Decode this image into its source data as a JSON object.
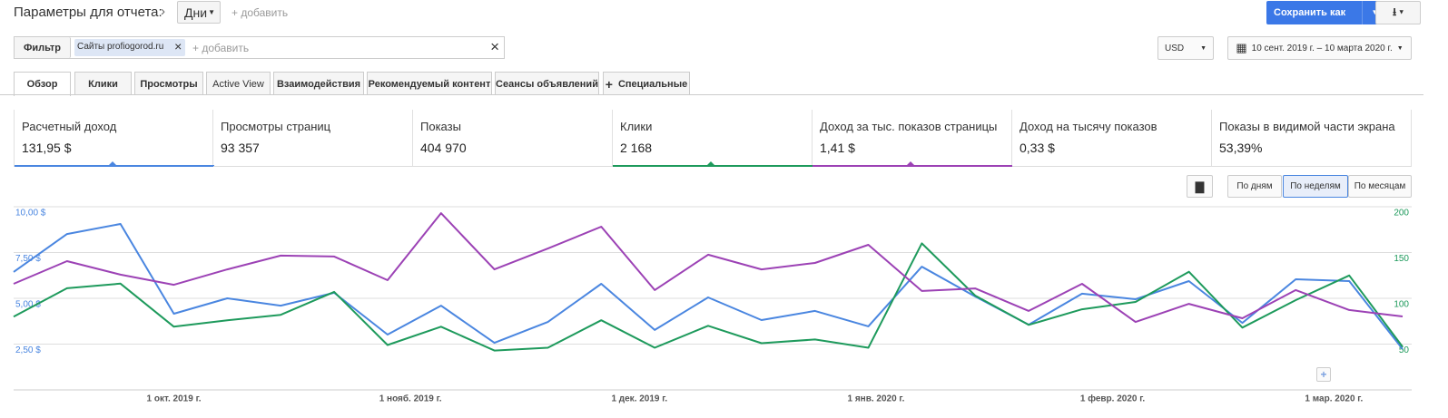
{
  "header": {
    "title": "Параметры для отчета:",
    "period": "Дни",
    "add": "+ добавить",
    "save": "Сохранить как"
  },
  "filter": {
    "label": "Фильтр",
    "chip": "Сайты profiogorod.ru",
    "add": "+ добавить",
    "currency": "USD",
    "date_range": "10 сент. 2019 г. – 10 марта 2020 г."
  },
  "tabs": [
    "Обзор",
    "Клики",
    "Просмотры",
    "Active View",
    "Взаимодействия",
    "Рекомендуемый контент",
    "Сеансы объявлений",
    "Специальные"
  ],
  "metrics": [
    {
      "label": "Расчетный доход",
      "value": "131,95 $"
    },
    {
      "label": "Просмотры страниц",
      "value": "93 357"
    },
    {
      "label": "Показы",
      "value": "404 970"
    },
    {
      "label": "Клики",
      "value": "2 168"
    },
    {
      "label": "Доход за тыс. показов страницы",
      "value": "1,41 $"
    },
    {
      "label": "Доход на тысячу показов",
      "value": "0,33 $"
    },
    {
      "label": "Показы в видимой части экрана",
      "value": "53,39%"
    }
  ],
  "granularity": [
    "По дням",
    "По неделям",
    "По месяцам"
  ],
  "chart_data": {
    "type": "line",
    "x": [
      "2019-09-10",
      "2019-09-17",
      "2019-09-24",
      "2019-10-01",
      "2019-10-08",
      "2019-10-15",
      "2019-10-22",
      "2019-10-29",
      "2019-11-05",
      "2019-11-12",
      "2019-11-19",
      "2019-11-26",
      "2019-12-03",
      "2019-12-10",
      "2019-12-17",
      "2019-12-24",
      "2019-12-31",
      "2020-01-07",
      "2020-01-14",
      "2020-01-21",
      "2020-01-28",
      "2020-02-04",
      "2020-02-11",
      "2020-02-18",
      "2020-02-25",
      "2020-03-03",
      "2020-03-10"
    ],
    "xlim": [
      "2019-09-10",
      "2020-03-10"
    ],
    "xticks": [
      {
        "value": "2019-10-01",
        "label": "1 окт. 2019 г."
      },
      {
        "value": "2019-11-01",
        "label": "1 нояб. 2019 г."
      },
      {
        "value": "2019-12-01",
        "label": "1 дек. 2019 г."
      },
      {
        "value": "2020-01-01",
        "label": "1 янв. 2020 г."
      },
      {
        "value": "2020-02-01",
        "label": "1 февр. 2020 г."
      },
      {
        "value": "2020-03-01",
        "label": "1 мар. 2020 г."
      }
    ],
    "ylim": [
      0,
      10
    ],
    "yticks": [
      {
        "value": 2.5,
        "label": "2,50 $"
      },
      {
        "value": 5,
        "label": "5,00 $"
      },
      {
        "value": 7.5,
        "label": "7,50 $"
      },
      {
        "value": 10,
        "label": "10,00 $"
      }
    ],
    "y2lim": [
      0,
      200
    ],
    "y2ticks": [
      50,
      100,
      150,
      200
    ],
    "grid": true,
    "series": [
      {
        "color": "#4a86e0",
        "values": [
          6.44,
          8.51,
          9.06,
          4.16,
          5.0,
          4.6,
          5.3,
          3.02,
          4.6,
          2.57,
          3.71,
          5.79,
          3.27,
          5.05,
          3.81,
          4.31,
          3.47,
          6.73,
          5.1,
          3.56,
          5.25,
          4.95,
          5.94,
          3.66,
          6.04,
          5.94,
          2.23
        ]
      },
      {
        "color": "#1e9a5c",
        "axis": "y2",
        "values": [
          80,
          111,
          116,
          69,
          76,
          82,
          107,
          49,
          69,
          43,
          46,
          76,
          46,
          70,
          51,
          55,
          46,
          160,
          103,
          71,
          88,
          96,
          129,
          68,
          98,
          125,
          47
        ]
      },
      {
        "color": "#9c42b5",
        "values": [
          5.79,
          7.03,
          6.29,
          5.74,
          6.58,
          7.33,
          7.28,
          5.99,
          9.65,
          6.58,
          7.72,
          8.91,
          5.45,
          7.38,
          6.58,
          6.93,
          7.92,
          5.4,
          5.54,
          4.31,
          5.79,
          3.71,
          4.7,
          3.91,
          5.45,
          4.36,
          4.01
        ]
      }
    ]
  }
}
